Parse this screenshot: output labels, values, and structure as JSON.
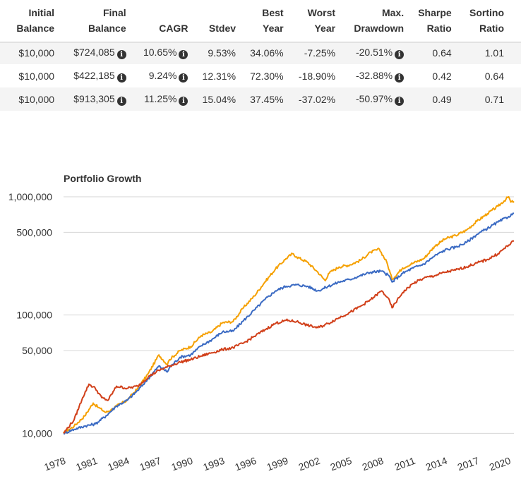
{
  "table": {
    "headers": [
      {
        "line1": "Initial",
        "line2": "Balance"
      },
      {
        "line1": "Final",
        "line2": "Balance"
      },
      {
        "line1": "",
        "line2": "CAGR"
      },
      {
        "line1": "",
        "line2": "Stdev"
      },
      {
        "line1": "Best",
        "line2": "Year"
      },
      {
        "line1": "Worst",
        "line2": "Year"
      },
      {
        "line1": "Max.",
        "line2": "Drawdown"
      },
      {
        "line1": "Sharpe",
        "line2": "Ratio"
      },
      {
        "line1": "Sortino",
        "line2": "Ratio"
      }
    ],
    "rows": [
      {
        "initial": "$10,000",
        "final": "$724,085",
        "cagr": "10.65%",
        "stdev": "9.53%",
        "best": "34.06%",
        "worst": "-7.25%",
        "drawdown": "-20.51%",
        "sharpe": "0.64",
        "sortino": "1.01"
      },
      {
        "initial": "$10,000",
        "final": "$422,185",
        "cagr": "9.24%",
        "stdev": "12.31%",
        "best": "72.30%",
        "worst": "-18.90%",
        "drawdown": "-32.88%",
        "sharpe": "0.42",
        "sortino": "0.64"
      },
      {
        "initial": "$10,000",
        "final": "$913,305",
        "cagr": "11.25%",
        "stdev": "15.04%",
        "best": "37.45%",
        "worst": "-37.02%",
        "drawdown": "-50.97%",
        "sharpe": "0.49",
        "sortino": "0.71"
      }
    ],
    "info_icon": "info-circle-icon"
  },
  "chart_data": {
    "type": "line",
    "title": "Portfolio Growth",
    "xlabel": "",
    "ylabel": "",
    "yscale": "log",
    "ylim": [
      9000,
      1100000
    ],
    "xlim": [
      1978,
      2020.5
    ],
    "yticks": [
      10000,
      50000,
      100000,
      500000,
      1000000
    ],
    "ytick_labels": [
      "10,000",
      "50,000",
      "100,000",
      "500,000",
      "1,000,000"
    ],
    "xticks": [
      1978,
      1981,
      1984,
      1987,
      1990,
      1993,
      1996,
      1999,
      2002,
      2005,
      2008,
      2011,
      2014,
      2017,
      2020
    ],
    "xtick_labels": [
      "1978",
      "1981",
      "1984",
      "1987",
      "1990",
      "1993",
      "1996",
      "1999",
      "2002",
      "2005",
      "2008",
      "2011",
      "2014",
      "2017",
      "2020"
    ],
    "grid": true,
    "legend": "none",
    "series": [
      {
        "color": "#f5a000",
        "x": [
          1978,
          1979,
          1980,
          1980.8,
          1981.3,
          1982,
          1982.6,
          1983,
          1984,
          1985,
          1986,
          1987,
          1987.8,
          1988,
          1989,
          1990,
          1991,
          1992,
          1993,
          1994,
          1995,
          1996,
          1997,
          1998,
          1999,
          1999.6,
          2000,
          2001,
          2002,
          2002.7,
          2003,
          2004,
          2005,
          2006,
          2007,
          2007.8,
          2008.5,
          2009,
          2010,
          2011,
          2012,
          2013,
          2014,
          2015,
          2016,
          2017,
          2018,
          2019,
          2020,
          2020.2,
          2020.5
        ],
        "y": [
          10000,
          11500,
          14000,
          18000,
          16500,
          15000,
          16000,
          17000,
          19000,
          24000,
          32000,
          46000,
          38000,
          42000,
          50000,
          54000,
          67000,
          72000,
          86000,
          88000,
          116000,
          145000,
          190000,
          245000,
          300000,
          330000,
          310000,
          280000,
          230000,
          195000,
          225000,
          255000,
          265000,
          290000,
          340000,
          360000,
          280000,
          200000,
          250000,
          275000,
          300000,
          380000,
          440000,
          470000,
          520000,
          620000,
          720000,
          830000,
          1000000,
          900000,
          913305
        ]
      },
      {
        "color": "#3a6ac3",
        "x": [
          1978,
          1979,
          1980,
          1981,
          1982,
          1983,
          1984,
          1985,
          1986,
          1987,
          1987.8,
          1988,
          1989,
          1990,
          1991,
          1992,
          1993,
          1994,
          1995,
          1996,
          1997,
          1998,
          1999,
          2000,
          2001,
          2002,
          2003,
          2004,
          2005,
          2006,
          2007,
          2008,
          2008.7,
          2009,
          2010,
          2011,
          2012,
          2013,
          2014,
          2015,
          2016,
          2017,
          2018,
          2019,
          2020,
          2020.5
        ],
        "y": [
          10000,
          10800,
          11500,
          12000,
          14000,
          17000,
          19000,
          23000,
          29000,
          37000,
          33000,
          36000,
          44000,
          46000,
          55000,
          62000,
          72000,
          73000,
          90000,
          110000,
          135000,
          160000,
          175000,
          180000,
          175000,
          160000,
          175000,
          190000,
          200000,
          215000,
          230000,
          235000,
          215000,
          190000,
          225000,
          250000,
          270000,
          315000,
          355000,
          375000,
          410000,
          480000,
          540000,
          610000,
          680000,
          724085
        ]
      },
      {
        "color": "#d13f19",
        "x": [
          1978,
          1979,
          1979.8,
          1980.4,
          1981,
          1981.6,
          1982.2,
          1983,
          1984,
          1985,
          1986,
          1987,
          1988,
          1989,
          1990,
          1991,
          1992,
          1993,
          1994,
          1995,
          1996,
          1997,
          1998,
          1999,
          2000,
          2001,
          2002,
          2003,
          2004,
          2005,
          2006,
          2007,
          2008,
          2008.6,
          2009,
          2010,
          2011,
          2012,
          2013,
          2014,
          2015,
          2016,
          2017,
          2018,
          2019,
          2020,
          2020.5
        ],
        "y": [
          10000,
          13000,
          20000,
          26000,
          24000,
          20000,
          19000,
          25000,
          24000,
          25000,
          30000,
          34000,
          37000,
          40000,
          42000,
          45000,
          48000,
          51000,
          53000,
          58000,
          66000,
          75000,
          85000,
          90000,
          88000,
          82000,
          78000,
          85000,
          95000,
          105000,
          118000,
          135000,
          160000,
          140000,
          115000,
          155000,
          185000,
          205000,
          215000,
          230000,
          240000,
          255000,
          275000,
          295000,
          330000,
          390000,
          422185
        ]
      }
    ]
  }
}
